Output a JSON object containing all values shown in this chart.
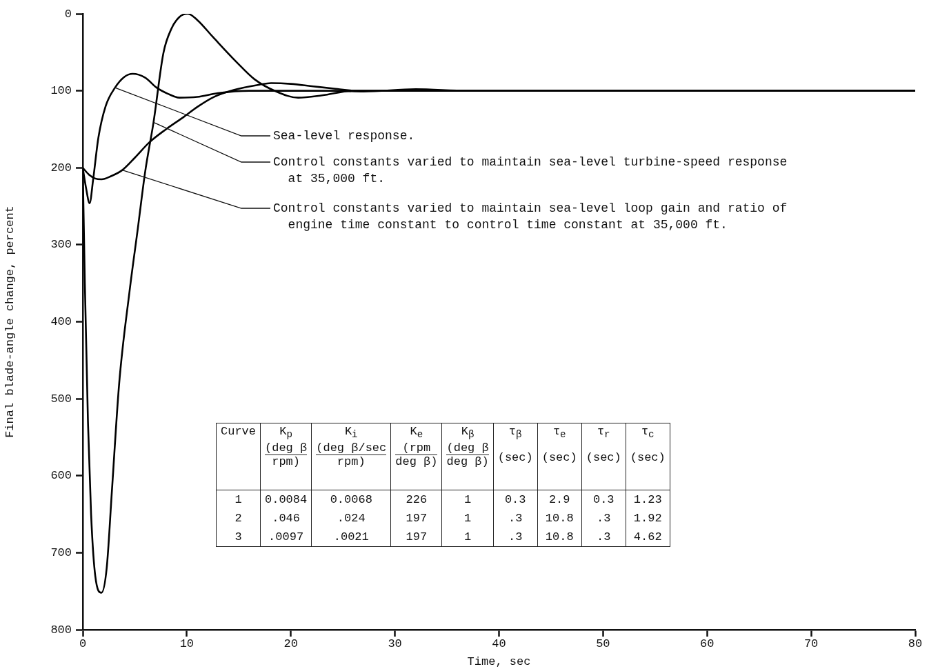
{
  "chart_data": {
    "type": "line",
    "xlabel": "Time, sec",
    "ylabel": "Final blade-angle change, percent",
    "xlim": [
      0,
      80
    ],
    "xticks": [
      0,
      10,
      20,
      30,
      40,
      50,
      60,
      70,
      80
    ],
    "ylim": [
      800,
      0
    ],
    "yticks": [
      0,
      100,
      200,
      300,
      400,
      500,
      600,
      700,
      800
    ],
    "grid": false,
    "legend": false,
    "marker": "none",
    "line_style": "solid",
    "series": [
      {
        "color": "#000000",
        "x": [
          0,
          0.3,
          0.66,
          1,
          1.5,
          2.2,
          3.1,
          4,
          4.8,
          6,
          7.1,
          8.2,
          9.3,
          11,
          13,
          16,
          20,
          24,
          27,
          32,
          37,
          45,
          80
        ],
        "values": [
          200,
          225,
          246,
          215,
          161,
          120,
          96,
          82,
          78,
          83,
          96,
          104,
          109,
          108,
          103,
          100,
          100,
          100,
          101,
          98,
          100,
          100,
          100
        ]
      },
      {
        "color": "#000000",
        "x": [
          0,
          0.2,
          0.5,
          0.8,
          1.2,
          1.8,
          2.3,
          2.8,
          3.5,
          4.5,
          5.3,
          6,
          6.8,
          7.75,
          8.5,
          9.3,
          10.1,
          11,
          12.5,
          14.8,
          16.5,
          18.6,
          20.7,
          23,
          26,
          30,
          80
        ],
        "values": [
          200,
          350,
          530,
          650,
          730,
          752,
          720,
          620,
          480,
          360,
          278,
          205,
          141,
          51,
          20,
          4,
          0,
          8,
          30,
          63,
          85,
          101,
          109,
          106,
          100,
          100,
          100
        ]
      },
      {
        "color": "#000000",
        "x": [
          0,
          0.6,
          1.2,
          1.8,
          2.7,
          3.8,
          5,
          6.4,
          8,
          9.7,
          11,
          12.6,
          14.5,
          17,
          18.1,
          20,
          22,
          24,
          26.3,
          30,
          80
        ],
        "values": [
          200,
          209,
          214,
          215,
          211,
          203,
          187,
          167,
          150,
          134,
          121,
          108,
          99,
          92,
          90,
          91,
          94,
          97,
          100,
          100,
          100
        ]
      }
    ],
    "annotations": [
      {
        "text": "Sea-level response.",
        "x": 3.1,
        "y": 96
      },
      {
        "text": "Control constants varied to maintain sea-level turbine-speed response\nat 35,000 ft.",
        "x": 6.8,
        "y": 141
      },
      {
        "text": "Control constants varied to maintain sea-level loop gain and ratio of\nengine time constant to control time constant at 35,000 ft.",
        "x": 3.8,
        "y": 203
      },
      "Curve",
      "K$_{p}$\n(deg β\nrpm)",
      "K$_{i}$\n(deg β/sec\nrpm)",
      "K$_{e}$\n(rpm\ndeg β)",
      "K$_{β}$\n(deg β\ndeg β)",
      "τ$_{β}$\n(sec)",
      "τ$_{e}$\n(sec)",
      "τ$_{r}$\n(sec)",
      "τ$_{c}$\n(sec)",
      "1",
      "0.0084",
      "0.0068",
      "226",
      "1",
      "0.3",
      "2.9",
      "0.3",
      "1.23",
      "2",
      ".046",
      ".024",
      "197",
      "1",
      ".3",
      "10.8",
      ".3",
      "1.92",
      "3",
      ".0097",
      ".0021",
      "197",
      "1",
      ".3",
      "10.8",
      ".3",
      "4.62"
    ]
  }
}
